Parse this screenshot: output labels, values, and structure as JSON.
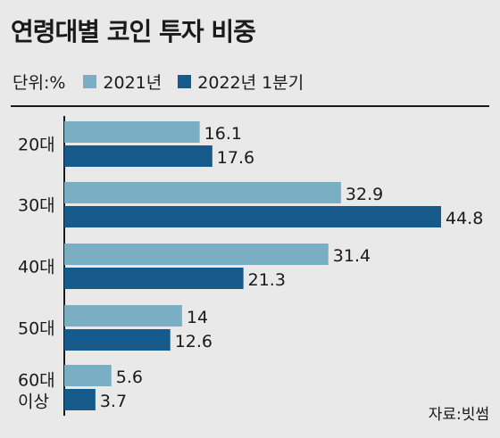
{
  "title": "연령대별 코인 투자 비중",
  "legend": {
    "unit": "단위:%",
    "series_2021": "2021년",
    "series_2022": "2022년 1분기"
  },
  "colors": {
    "series_2021": "#7aafc3",
    "series_2022": "#155a8b",
    "axis": "#1a1a1a"
  },
  "source": "자료:빗썸",
  "chart_data": {
    "type": "bar",
    "orientation": "horizontal",
    "title": "연령대별 코인 투자 비중",
    "xlabel": "",
    "ylabel": "",
    "unit": "단위:%",
    "categories": [
      "20대",
      "30대",
      "40대",
      "50대",
      "60대 이상"
    ],
    "series": [
      {
        "name": "2021년",
        "values": [
          16.1,
          32.9,
          31.4,
          14,
          5.6
        ]
      },
      {
        "name": "2022년 1분기",
        "values": [
          17.6,
          44.8,
          21.3,
          12.6,
          3.7
        ]
      }
    ],
    "xlim": [
      0,
      46
    ],
    "grid": false,
    "legend_position": "top-left"
  }
}
